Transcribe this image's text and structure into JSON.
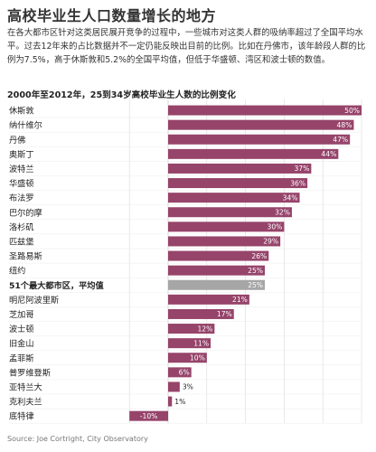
{
  "title": "高校毕业生人口数量增长的地方",
  "intro": "在各大都市区针对这类居民展开竞争的过程中，一些城市对这类人群的吸纳率超过了全国平均水平。过去12年来的占比数据并不一定仍能反映出目前的比例。比如在丹佛市，该年龄段人群的比例为7.5%，高于休斯敦和5.2%的全国平均值，但低于华盛顿、湾区和波士顿的数值。",
  "source": "Source: Joe Cortright, City Observatory",
  "colors": {
    "bar": "#96446a",
    "average_bar": "#a6a6a6",
    "grid": "#d9d9d9",
    "label_text": "#ffffff"
  },
  "chart_data": {
    "type": "bar",
    "orientation": "horizontal",
    "title": "2000年至2012年，25到34岁高校毕业生人数的比例变化",
    "xlabel": "",
    "ylabel": "",
    "xlim": [
      -10,
      50
    ],
    "grid": true,
    "highlighted_category": "51个最大都市区，平均值",
    "categories": [
      "休斯敦",
      "纳什维尔",
      "丹佛",
      "奥斯丁",
      "波特兰",
      "华盛顿",
      "布法罗",
      "巴尔的摩",
      "洛杉矶",
      "匹兹堡",
      "圣路易斯",
      "纽约",
      "51个最大都市区，平均值",
      "明尼阿波里斯",
      "芝加哥",
      "波士顿",
      "旧金山",
      "孟菲斯",
      "普罗维登斯",
      "亚特兰大",
      "克利夫兰",
      "底特律"
    ],
    "values": [
      50,
      48,
      47,
      44,
      37,
      36,
      34,
      32,
      30,
      29,
      26,
      25,
      25,
      21,
      17,
      12,
      11,
      10,
      6,
      3,
      1,
      -10
    ],
    "value_labels": [
      "50%",
      "48%",
      "47%",
      "44%",
      "37%",
      "36%",
      "34%",
      "32%",
      "30%",
      "29%",
      "26%",
      "25%",
      "25%",
      "21%",
      "17%",
      "12%",
      "11%",
      "10%",
      "6%",
      "3%",
      "1%",
      "-10%"
    ]
  }
}
